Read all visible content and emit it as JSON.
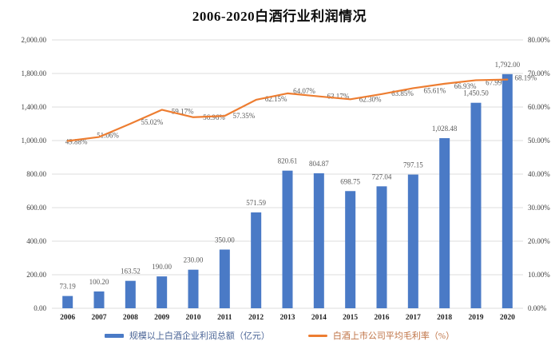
{
  "title": "2006-2020白酒行业利润情况",
  "chart_data": {
    "type": "bar+line",
    "title": "2006-2020白酒行业利润情况",
    "categories": [
      "2006",
      "2007",
      "2008",
      "2009",
      "2010",
      "2011",
      "2012",
      "2013",
      "2014",
      "2015",
      "2016",
      "2017",
      "2018",
      "2019",
      "2020"
    ],
    "series": [
      {
        "name": "规模以上白酒企业利润总额（亿元）",
        "type": "bar",
        "color": "#4a7ac6",
        "axis": "left",
        "values": [
          73.19,
          100.2,
          163.52,
          190.0,
          230.0,
          350.0,
          571.59,
          820.61,
          804.87,
          698.75,
          727.04,
          797.15,
          1028.48,
          1450.5,
          1792.0
        ],
        "labels": [
          "73.19",
          "100.20",
          "163.52",
          "190.00",
          "230.00",
          "350.00",
          "571.59",
          "820.61",
          "804.87",
          "698.75",
          "727.04",
          "797.15",
          "1,028.48",
          "1,450.50",
          "1,792.00"
        ]
      },
      {
        "name": "白酒上市公司平均毛利率（%）",
        "type": "line",
        "color": "#ed7d31",
        "axis": "right",
        "values": [
          49.88,
          51.06,
          55.02,
          59.17,
          56.96,
          57.35,
          62.15,
          64.07,
          63.17,
          62.3,
          63.85,
          65.61,
          66.93,
          67.99,
          68.19
        ],
        "labels": [
          "49.88%",
          "51.06%",
          "55.02%",
          "59.17%",
          "56.96%",
          "57.35%",
          "62.15%",
          "64.07%",
          "63.17%",
          "62.30%",
          "63.85%",
          "65.61%",
          "66.93%",
          "67.99%",
          "68.19%"
        ]
      }
    ],
    "left_axis": {
      "tick_labels": [
        "0.00",
        "200.00",
        "400.00",
        "600.00",
        "800.00",
        "1,000.00",
        "1,400.00",
        "1,800.00",
        "2,000.00"
      ],
      "tick_values": [
        0,
        200,
        400,
        600,
        800,
        1000,
        1400,
        1800,
        2000
      ]
    },
    "right_axis": {
      "tick_labels": [
        "0.00%",
        "10.00%",
        "20.00%",
        "30.00%",
        "40.00%",
        "50.00%",
        "60.00%",
        "70.00%",
        "80.00%"
      ],
      "min": 0,
      "max": 80
    },
    "grid": true,
    "legend_position": "bottom",
    "colors": {
      "grid_line": "#dcdcdc",
      "axis_text": "#3c3c3c",
      "bar_label_text": "#595959",
      "pct_label_text": "#595959",
      "year_text": "#1f1f1f"
    }
  },
  "legend": {
    "items": [
      {
        "label": "规模以上白酒企业利润总额（亿元）",
        "text_color": "#4a6496",
        "swatch_color": "#4a7ac6",
        "swatch": "bar"
      },
      {
        "label": "白酒上市公司平均毛利率（%）",
        "text_color": "#bf7244",
        "swatch_color": "#ed7d31",
        "swatch": "line"
      }
    ]
  }
}
